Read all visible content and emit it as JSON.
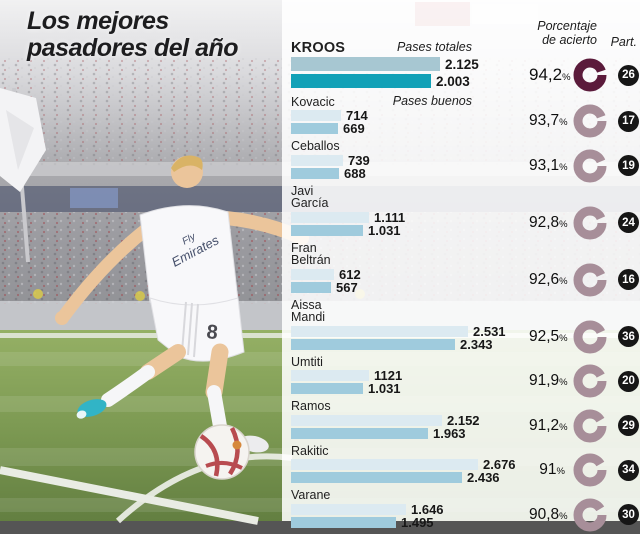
{
  "title": {
    "line1": "Los mejores",
    "line2": "pasadores del año"
  },
  "headers": {
    "pct_line1": "Porcentaje",
    "pct_line2": "de acierto",
    "part": "Part.",
    "total_series": "Pases totales",
    "good_series": "Pases buenos",
    "pct_suffix": "%"
  },
  "photo": {
    "jersey_line1": "Fly",
    "jersey_line2": "Emirates",
    "shorts_number": "8"
  },
  "colors": {
    "title": "#1d1d1f",
    "bar_total_hl": "#a7c7d2",
    "bar_good_hl": "#12a1b7",
    "bar_total": "#dceaf1",
    "bar_good": "#9fcbdd",
    "donut_hl": "#5b1b3b",
    "donut": "#a78e99",
    "badge": "#161616"
  },
  "rows": [
    {
      "name": "KROOS",
      "highlight": true,
      "series_label_key": "total_series",
      "total_display": "2.125",
      "good_display": "2.003",
      "pct_display": "94,2",
      "part": "26"
    },
    {
      "name": "Kovacic",
      "highlight": false,
      "series_label_key": "good_series",
      "total_display": "714",
      "good_display": "669",
      "pct_display": "93,7",
      "part": "17"
    },
    {
      "name": "Ceballos",
      "highlight": false,
      "series_label_key": "",
      "total_display": "739",
      "good_display": "688",
      "pct_display": "93,1",
      "part": "19"
    },
    {
      "name": "Javi\nGarcía",
      "highlight": false,
      "series_label_key": "",
      "total_display": "1.111",
      "good_display": "1.031",
      "pct_display": "92,8",
      "part": "24"
    },
    {
      "name": "Fran\nBeltrán",
      "highlight": false,
      "series_label_key": "",
      "total_display": "612",
      "good_display": "567",
      "pct_display": "92,6",
      "part": "16"
    },
    {
      "name": "Aissa\nMandi",
      "highlight": false,
      "series_label_key": "",
      "total_display": "2.531",
      "good_display": "2.343",
      "pct_display": "92,5",
      "part": "36"
    },
    {
      "name": "Umtiti",
      "highlight": false,
      "series_label_key": "",
      "total_display": "1121",
      "good_display": "1.031",
      "pct_display": "91,9",
      "part": "20"
    },
    {
      "name": "Ramos",
      "highlight": false,
      "series_label_key": "",
      "total_display": "2.152",
      "good_display": "1.963",
      "pct_display": "91,2",
      "part": "29"
    },
    {
      "name": "Rakitic",
      "highlight": false,
      "series_label_key": "",
      "total_display": "2.676",
      "good_display": "2.436",
      "pct_display": "91",
      "part": "34"
    },
    {
      "name": "Varane",
      "highlight": false,
      "series_label_key": "",
      "total_display": "1.646",
      "good_display": "1.495",
      "pct_display": "90,8",
      "part": "30"
    }
  ],
  "chart_data": {
    "type": "bar",
    "orientation": "horizontal",
    "title": "Los mejores pasadores del año",
    "categories": [
      "Kroos",
      "Kovacic",
      "Ceballos",
      "Javi García",
      "Fran Beltrán",
      "Aissa Mandi",
      "Umtiti",
      "Ramos",
      "Rakitic",
      "Varane"
    ],
    "series": [
      {
        "name": "Pases totales",
        "values": [
          2125,
          714,
          739,
          1111,
          612,
          2531,
          1121,
          2152,
          2676,
          1646
        ]
      },
      {
        "name": "Pases buenos",
        "values": [
          2003,
          669,
          688,
          1031,
          567,
          2343,
          1031,
          1963,
          2436,
          1495
        ]
      }
    ],
    "porcentaje_acierto": [
      94.2,
      93.7,
      93.1,
      92.8,
      92.6,
      92.5,
      91.9,
      91.2,
      91.0,
      90.8
    ],
    "partidos": [
      26,
      17,
      19,
      24,
      16,
      36,
      20,
      29,
      34,
      30
    ],
    "xlim": [
      0,
      2800
    ],
    "grid": false,
    "legend_position": "inline-first-rows"
  }
}
